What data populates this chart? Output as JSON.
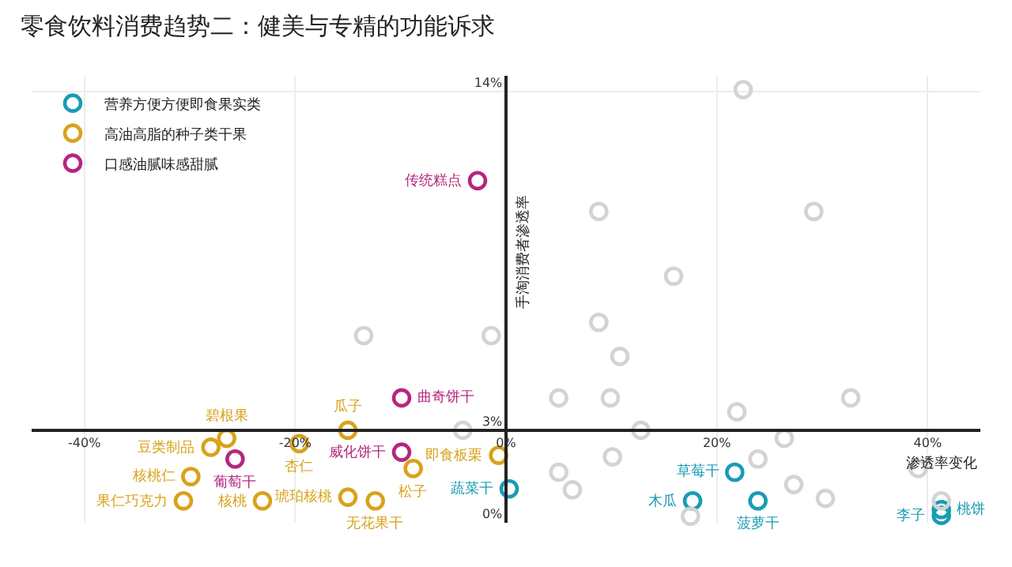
{
  "chart_data": {
    "type": "scatter",
    "title": "零食饮料消费趋势二：健美与专精的功能诉求",
    "xlabel": "渗透率变化",
    "ylabel": "手淘消费者渗透率",
    "xlim": [
      -45,
      45
    ],
    "ylim": [
      0,
      14.5
    ],
    "xticks": [
      {
        "value": -40,
        "label": "-40%"
      },
      {
        "value": -20,
        "label": "-20%"
      },
      {
        "value": 0,
        "label": "0%"
      },
      {
        "value": 20,
        "label": "20%"
      },
      {
        "value": 40,
        "label": "40%"
      }
    ],
    "yticks": [
      {
        "value": 0,
        "label": "0%"
      },
      {
        "value": 3,
        "label": "3%"
      },
      {
        "value": 14,
        "label": "14%"
      }
    ],
    "grid": true,
    "legend": "top left",
    "marker": "circle",
    "series": [
      {
        "name": "营养方便方便即食果实类",
        "color": "#1a9bb5",
        "x": [
          0.3,
          21.7,
          17.7,
          23.9,
          41.3,
          41.3
        ],
        "values": [
          1.1,
          1.64,
          0.71,
          0.71,
          0.24,
          0.43
        ]
      },
      {
        "name": "高油高脂的种子类干果",
        "color": "#d9a21b",
        "x": [
          -15.0,
          -26.5,
          -19.6,
          -28.0,
          -0.7,
          -8.8,
          -29.9,
          -30.6,
          -23.1,
          -15.0,
          -12.4
        ],
        "values": [
          3.0,
          2.74,
          2.57,
          2.45,
          2.19,
          1.76,
          1.5,
          0.71,
          0.71,
          0.83,
          0.71
        ]
      },
      {
        "name": "口感油腻味感甜腻",
        "color": "#b5267e",
        "x": [
          -2.7,
          -9.9,
          -9.9,
          -25.7
        ],
        "values": [
          11.1,
          4.05,
          2.29,
          2.07
        ]
      },
      {
        "color": "#d3d3d3",
        "x": [
          -13.5,
          -1.4,
          -4.1,
          22.5,
          8.8,
          29.2,
          15.9,
          8.8,
          10.8,
          5.0,
          9.9,
          21.9,
          32.7,
          12.8,
          26.4,
          10.1,
          23.9,
          5.0,
          39.1,
          27.3,
          6.3,
          30.3,
          41.3,
          17.5
        ],
        "values": [
          6.07,
          6.07,
          3.0,
          14.05,
          10.1,
          10.1,
          8.0,
          6.5,
          5.4,
          4.05,
          4.05,
          3.6,
          4.05,
          3.0,
          2.74,
          2.14,
          2.07,
          1.64,
          1.76,
          1.24,
          1.07,
          0.79,
          0.71,
          0.21
        ]
      }
    ],
    "annotations": [
      {
        "text": "蔬菜干",
        "x": 0.3,
        "y": 1.1
      },
      {
        "text": "草莓干",
        "x": 21.7,
        "y": 1.64
      },
      {
        "text": "木瓜",
        "x": 17.7,
        "y": 0.71
      },
      {
        "text": "菠萝干",
        "x": 23.9,
        "y": 0.71
      },
      {
        "text": "李子",
        "x": 41.3,
        "y": 0.24
      },
      {
        "text": "桃饼",
        "x": 41.3,
        "y": 0.43
      },
      {
        "text": "瓜子",
        "x": -15.0,
        "y": 3.0
      },
      {
        "text": "碧根果",
        "x": -26.5,
        "y": 2.74
      },
      {
        "text": "杏仁",
        "x": -19.6,
        "y": 2.57
      },
      {
        "text": "豆类制品",
        "x": -28.0,
        "y": 2.45
      },
      {
        "text": "即食板栗",
        "x": -0.7,
        "y": 2.19
      },
      {
        "text": "松子",
        "x": -8.8,
        "y": 1.76
      },
      {
        "text": "核桃仁",
        "x": -29.9,
        "y": 1.5
      },
      {
        "text": "果仁巧克力",
        "x": -30.6,
        "y": 0.71
      },
      {
        "text": "核桃",
        "x": -23.1,
        "y": 0.71
      },
      {
        "text": "琥珀核桃",
        "x": -15.0,
        "y": 0.83
      },
      {
        "text": "无花果干",
        "x": -12.4,
        "y": 0.71
      },
      {
        "text": "传统糕点",
        "x": -2.7,
        "y": 11.1
      },
      {
        "text": "曲奇饼干",
        "x": -9.9,
        "y": 4.05
      },
      {
        "text": "威化饼干",
        "x": -9.9,
        "y": 2.29
      },
      {
        "text": "葡萄干",
        "x": -25.7,
        "y": 2.07
      }
    ]
  }
}
